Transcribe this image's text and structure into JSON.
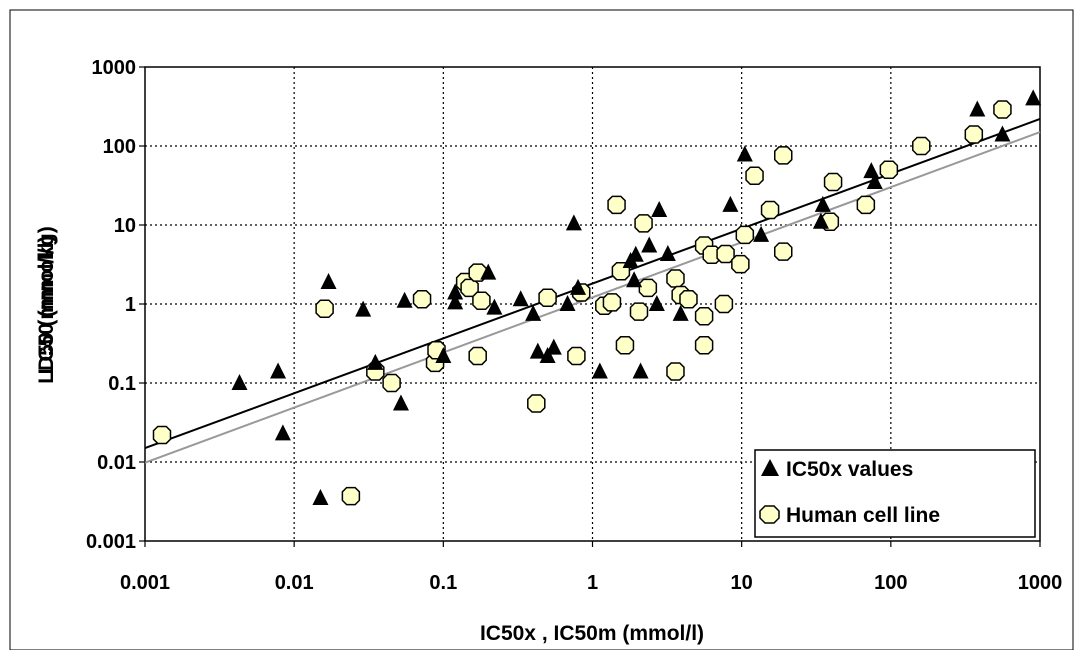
{
  "chart_data": {
    "type": "scatter",
    "xlabel": "IC50x , IC50m (mmol/l)",
    "ylabel_overlapped": [
      "LD50 (mmol/kg)",
      "LC50 (mmol/l)"
    ],
    "x_scale": "log",
    "y_scale": "log",
    "xlim": [
      0.001,
      1000
    ],
    "ylim": [
      0.001,
      1000
    ],
    "grid": true,
    "legend_position": "bottom-right",
    "x_ticks": [
      "0.001",
      "0.01",
      "0.1",
      "1",
      "10",
      "100",
      "1000"
    ],
    "y_ticks": [
      "0.001",
      "0.01",
      "0.1",
      "1",
      "10",
      "100",
      "1000"
    ],
    "series": [
      {
        "name": "IC50x values",
        "marker": "triangle",
        "color": "#000000",
        "points": [
          [
            0.0043,
            0.1
          ],
          [
            0.0078,
            0.14
          ],
          [
            0.0084,
            0.023
          ],
          [
            0.015,
            0.0035
          ],
          [
            0.017,
            1.9
          ],
          [
            0.029,
            0.85
          ],
          [
            0.035,
            0.18
          ],
          [
            0.052,
            0.055
          ],
          [
            0.055,
            1.1
          ],
          [
            0.1,
            0.22
          ],
          [
            0.12,
            1.05
          ],
          [
            0.12,
            1.4
          ],
          [
            0.2,
            2.5
          ],
          [
            0.22,
            0.9
          ],
          [
            0.33,
            1.15
          ],
          [
            0.4,
            0.75
          ],
          [
            0.43,
            0.25
          ],
          [
            0.5,
            0.22
          ],
          [
            0.55,
            0.28
          ],
          [
            0.68,
            1.0
          ],
          [
            0.75,
            10.5
          ],
          [
            0.8,
            1.6
          ],
          [
            1.12,
            0.14
          ],
          [
            1.8,
            3.5
          ],
          [
            1.9,
            2.0
          ],
          [
            1.95,
            4.2
          ],
          [
            2.1,
            0.14
          ],
          [
            2.4,
            5.5
          ],
          [
            2.8,
            15.5
          ],
          [
            2.7,
            1.0
          ],
          [
            3.2,
            4.3
          ],
          [
            3.9,
            0.75
          ],
          [
            8.4,
            18.0
          ],
          [
            10.5,
            78.0
          ],
          [
            13.5,
            7.5
          ],
          [
            35.0,
            18.0
          ],
          [
            34.0,
            11.0
          ],
          [
            74.0,
            48.0
          ],
          [
            78.0,
            35.0
          ],
          [
            380.0,
            290.0
          ],
          [
            560.0,
            140.0
          ],
          [
            900.0,
            400.0
          ]
        ]
      },
      {
        "name": "Human cell line",
        "marker": "circle",
        "color": "#ffffc8",
        "points": [
          [
            0.0013,
            0.022
          ],
          [
            0.016,
            0.87
          ],
          [
            0.024,
            0.0037
          ],
          [
            0.035,
            0.14
          ],
          [
            0.045,
            0.1
          ],
          [
            0.072,
            1.15
          ],
          [
            0.088,
            0.18
          ],
          [
            0.09,
            0.26
          ],
          [
            0.14,
            1.9
          ],
          [
            0.15,
            1.6
          ],
          [
            0.17,
            2.5
          ],
          [
            0.17,
            0.22
          ],
          [
            0.18,
            1.1
          ],
          [
            0.42,
            0.055
          ],
          [
            0.5,
            1.2
          ],
          [
            0.78,
            0.22
          ],
          [
            0.84,
            1.4
          ],
          [
            1.2,
            0.95
          ],
          [
            1.35,
            1.05
          ],
          [
            1.45,
            18.0
          ],
          [
            1.55,
            2.6
          ],
          [
            1.65,
            0.3
          ],
          [
            2.05,
            0.8
          ],
          [
            2.2,
            10.5
          ],
          [
            2.35,
            1.6
          ],
          [
            3.6,
            2.1
          ],
          [
            3.6,
            0.14
          ],
          [
            3.9,
            1.3
          ],
          [
            4.4,
            1.15
          ],
          [
            5.6,
            5.5
          ],
          [
            5.6,
            0.7
          ],
          [
            5.6,
            0.3
          ],
          [
            6.3,
            4.2
          ],
          [
            7.6,
            1.0
          ],
          [
            7.8,
            4.3
          ],
          [
            9.8,
            3.2
          ],
          [
            10.5,
            7.5
          ],
          [
            12.2,
            42.0
          ],
          [
            15.5,
            15.5
          ],
          [
            19.0,
            76.0
          ],
          [
            19.0,
            4.6
          ],
          [
            39.0,
            11.0
          ],
          [
            41.0,
            35.0
          ],
          [
            68.0,
            18.0
          ],
          [
            97.0,
            50.0
          ],
          [
            160.0,
            100.0
          ],
          [
            360.0,
            140.0
          ],
          [
            560.0,
            290.0
          ]
        ]
      }
    ],
    "trendlines": [
      {
        "series": "IC50x values",
        "color": "#000000",
        "from": [
          0.001,
          0.015
        ],
        "to": [
          1000,
          220
        ]
      },
      {
        "series": "Human cell line",
        "color": "#999999",
        "from": [
          0.001,
          0.0098
        ],
        "to": [
          1000,
          150
        ]
      }
    ]
  }
}
